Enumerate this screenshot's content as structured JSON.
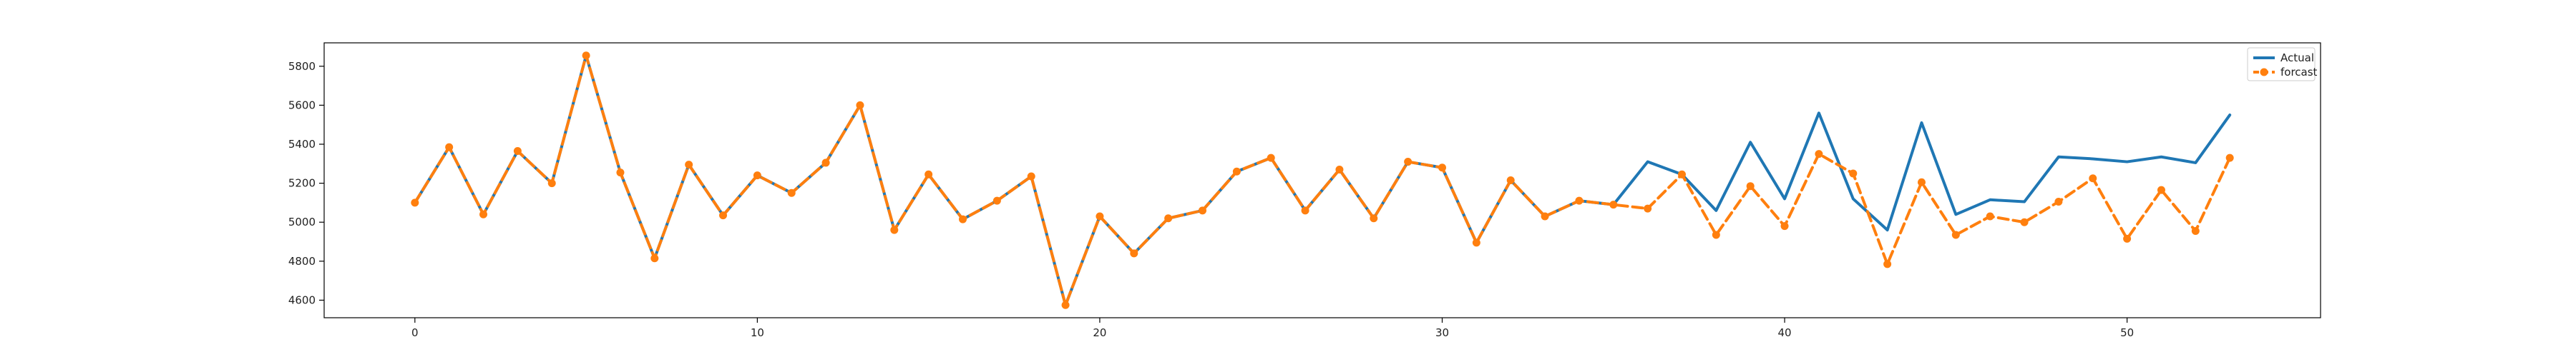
{
  "chart_data": {
    "type": "line",
    "x": [
      0,
      1,
      2,
      3,
      4,
      5,
      6,
      7,
      8,
      9,
      10,
      11,
      12,
      13,
      14,
      15,
      16,
      17,
      18,
      19,
      20,
      21,
      22,
      23,
      24,
      25,
      26,
      27,
      28,
      29,
      30,
      31,
      32,
      33,
      34,
      35,
      36,
      37,
      38,
      39,
      40,
      41,
      42,
      43,
      44,
      45,
      46,
      47,
      48,
      49,
      50,
      51,
      52,
      53
    ],
    "series": [
      {
        "name": "Actual",
        "color": "#1f77b4",
        "style": "solid",
        "marker": "none",
        "values": [
          5100,
          5385,
          5040,
          5365,
          5200,
          5855,
          5255,
          4815,
          5295,
          5035,
          5240,
          5150,
          5305,
          5600,
          4960,
          5245,
          5015,
          5110,
          5235,
          4575,
          5030,
          4840,
          5020,
          5060,
          5260,
          5330,
          5060,
          5270,
          5020,
          5310,
          5280,
          4895,
          5215,
          5030,
          5110,
          5090,
          5310,
          5245,
          5060,
          5410,
          5120,
          5560,
          5120,
          4960,
          5510,
          5040,
          5115,
          5105,
          5335,
          5325,
          5310,
          5335,
          5305,
          5550
        ]
      },
      {
        "name": "forcast",
        "color": "#ff7f0e",
        "style": "dashed",
        "marker": "circle",
        "values": [
          5100,
          5385,
          5040,
          5365,
          5200,
          5855,
          5255,
          4815,
          5295,
          5035,
          5240,
          5150,
          5305,
          5600,
          4960,
          5245,
          5015,
          5110,
          5235,
          4575,
          5030,
          4840,
          5020,
          5060,
          5260,
          5330,
          5060,
          5270,
          5020,
          5310,
          5280,
          4895,
          5215,
          5030,
          5110,
          5090,
          5070,
          5245,
          4935,
          5185,
          4980,
          5350,
          5250,
          4785,
          5205,
          4935,
          5030,
          5000,
          5105,
          5225,
          4915,
          5165,
          4955,
          5330
        ]
      }
    ],
    "xticks": [
      0,
      10,
      20,
      30,
      40,
      50
    ],
    "xtick_labels": [
      "0",
      "10",
      "20",
      "30",
      "40",
      "50"
    ],
    "yticks": [
      4600,
      4800,
      5000,
      5200,
      5400,
      5600,
      5800
    ],
    "ytick_labels": [
      "4600",
      "4800",
      "5000",
      "5200",
      "5400",
      "5600",
      "5800"
    ],
    "xlim": [
      -2.65,
      55.65
    ],
    "ylim": [
      4510,
      5920
    ],
    "legend": {
      "placement": "upper-right",
      "entries": [
        "Actual",
        "forcast"
      ]
    },
    "grid": false
  }
}
